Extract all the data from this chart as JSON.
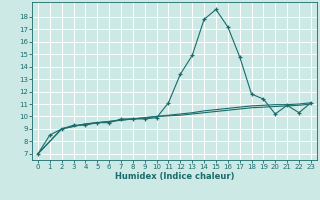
{
  "xlabel": "Humidex (Indice chaleur)",
  "background_color": "#cce9e5",
  "grid_color": "#ffffff",
  "line_color": "#1a6b6b",
  "xlim": [
    -0.5,
    23.5
  ],
  "ylim": [
    6.5,
    19.2
  ],
  "xticks": [
    0,
    1,
    2,
    3,
    4,
    5,
    6,
    7,
    8,
    9,
    10,
    11,
    12,
    13,
    14,
    15,
    16,
    17,
    18,
    19,
    20,
    21,
    22,
    23
  ],
  "yticks": [
    7,
    8,
    9,
    10,
    11,
    12,
    13,
    14,
    15,
    16,
    17,
    18
  ],
  "series1_x": [
    0,
    1,
    2,
    3,
    4,
    5,
    6,
    7,
    8,
    9,
    10,
    11,
    12,
    13,
    14,
    15,
    16,
    17,
    18,
    19,
    20,
    21,
    22,
    23
  ],
  "series1_y": [
    7.0,
    8.5,
    9.0,
    9.3,
    9.3,
    9.5,
    9.5,
    9.8,
    9.8,
    9.8,
    9.9,
    11.1,
    13.4,
    14.9,
    17.8,
    18.6,
    17.2,
    14.8,
    11.8,
    11.4,
    10.2,
    10.9,
    10.3,
    11.1
  ],
  "series2_x": [
    0,
    1,
    2,
    3,
    4,
    5,
    6,
    7,
    8,
    9,
    10,
    11,
    12,
    13,
    14,
    15,
    16,
    17,
    18,
    19,
    20,
    21,
    22,
    23
  ],
  "series2_y": [
    7.0,
    8.0,
    9.0,
    9.2,
    9.4,
    9.5,
    9.6,
    9.7,
    9.8,
    9.9,
    10.0,
    10.1,
    10.2,
    10.3,
    10.45,
    10.55,
    10.65,
    10.75,
    10.85,
    10.9,
    10.95,
    10.95,
    11.0,
    11.1
  ],
  "series3_x": [
    0,
    1,
    2,
    3,
    4,
    5,
    6,
    7,
    8,
    9,
    10,
    11,
    12,
    13,
    14,
    15,
    16,
    17,
    18,
    19,
    20,
    21,
    22,
    23
  ],
  "series3_y": [
    7.0,
    8.0,
    9.0,
    9.2,
    9.4,
    9.5,
    9.6,
    9.7,
    9.8,
    9.9,
    10.0,
    10.05,
    10.1,
    10.2,
    10.3,
    10.4,
    10.5,
    10.6,
    10.7,
    10.75,
    10.8,
    10.85,
    10.9,
    11.0
  ]
}
